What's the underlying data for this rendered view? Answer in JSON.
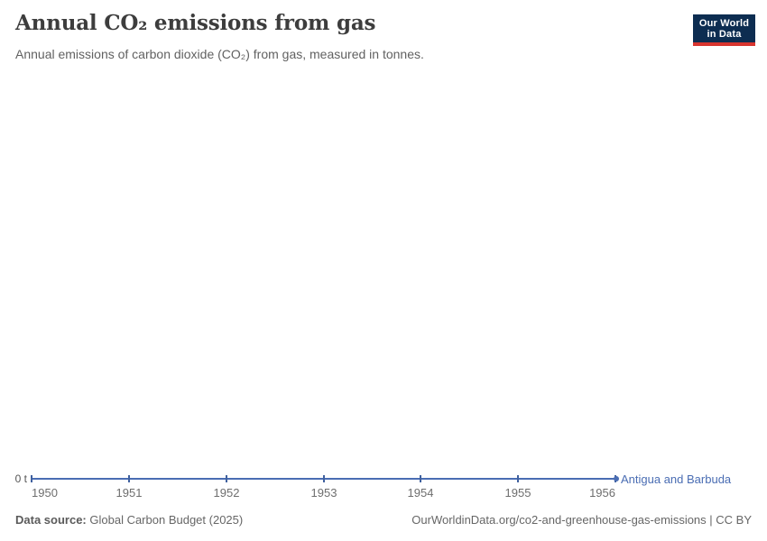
{
  "header": {
    "title": "Annual CO₂ emissions from gas",
    "subtitle": "Annual emissions of carbon dioxide (CO₂) from gas, measured in tonnes.",
    "logo": {
      "line1": "Our World",
      "line2": "in Data"
    }
  },
  "colors": {
    "accent_line": "#4a6db3",
    "tick": "#40619f",
    "logo_bg": "#0d2d51",
    "logo_red": "#d8352f"
  },
  "chart_data": {
    "type": "line",
    "title": "Annual CO₂ emissions from gas",
    "subtitle": "Annual emissions of carbon dioxide (CO₂) from gas, measured in tonnes.",
    "x": [
      1950,
      1951,
      1952,
      1953,
      1954,
      1955,
      1956
    ],
    "series": [
      {
        "name": "Antigua and Barbuda",
        "values": [
          0,
          0,
          0,
          0,
          0,
          0,
          0
        ]
      }
    ],
    "xlabel": "",
    "ylabel": "",
    "unit": "t",
    "xlim": [
      1950,
      1956
    ],
    "ylim": [
      0,
      0
    ],
    "grid": false,
    "legend_position": "end-of-line"
  },
  "axis": {
    "zero_label": "0 t",
    "x_tick_labels": [
      "1950",
      "1951",
      "1952",
      "1953",
      "1954",
      "1955",
      "1956"
    ]
  },
  "entity_label": "Antigua and Barbuda",
  "footer": {
    "data_source_label": "Data source:",
    "data_source_value": "Global Carbon Budget (2025)",
    "credit": "OurWorldinData.org/co2-and-greenhouse-gas-emissions | CC BY"
  }
}
